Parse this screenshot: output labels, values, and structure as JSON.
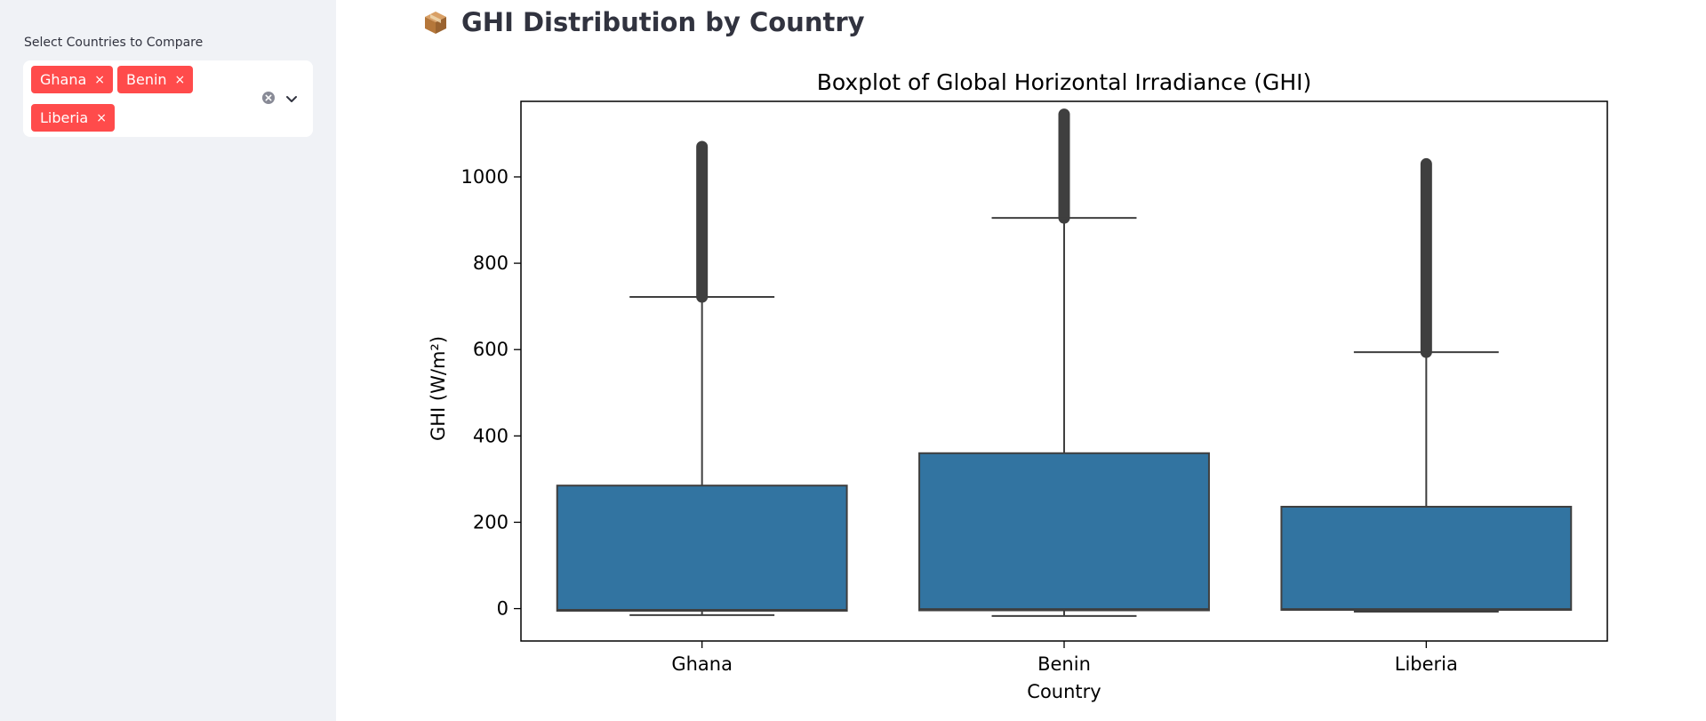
{
  "sidebar": {
    "select_label": "Select Countries to Compare",
    "selected": [
      {
        "label": "Ghana",
        "remove_symbol": "×"
      },
      {
        "label": "Benin",
        "remove_symbol": "×"
      },
      {
        "label": "Liberia",
        "remove_symbol": "×"
      }
    ],
    "clear_icon": "clear-all-icon",
    "dropdown_icon": "chevron-down-icon",
    "chip_color": "#ff4b4b"
  },
  "main": {
    "title_icon": "package-icon",
    "title": "GHI Distribution by Country"
  },
  "chart_data": {
    "type": "boxplot",
    "title": "Boxplot of Global Horizontal Irradiance (GHI)",
    "xlabel": "Country",
    "ylabel": "GHI (W/m²)",
    "ylim": [
      -75,
      1175
    ],
    "yticks": [
      0,
      200,
      400,
      600,
      800,
      1000
    ],
    "ytick_labels": [
      "0",
      "200",
      "400",
      "600",
      "800",
      "1000"
    ],
    "categories": [
      "Ghana",
      "Benin",
      "Liberia"
    ],
    "box_color": "#3274a1",
    "boxes": [
      {
        "name": "Ghana",
        "whisker_low": -15,
        "q1": -5,
        "median": -3,
        "q3": 285,
        "whisker_high": 722,
        "outlier_min": 722,
        "outlier_max": 1070
      },
      {
        "name": "Benin",
        "whisker_low": -17,
        "q1": -4,
        "median": -1,
        "q3": 360,
        "whisker_high": 905,
        "outlier_min": 905,
        "outlier_max": 1145
      },
      {
        "name": "Liberia",
        "whisker_low": -7,
        "q1": -3,
        "median": -1,
        "q3": 236,
        "whisker_high": 594,
        "outlier_min": 594,
        "outlier_max": 1030
      }
    ],
    "grid": false,
    "legend": "none"
  }
}
